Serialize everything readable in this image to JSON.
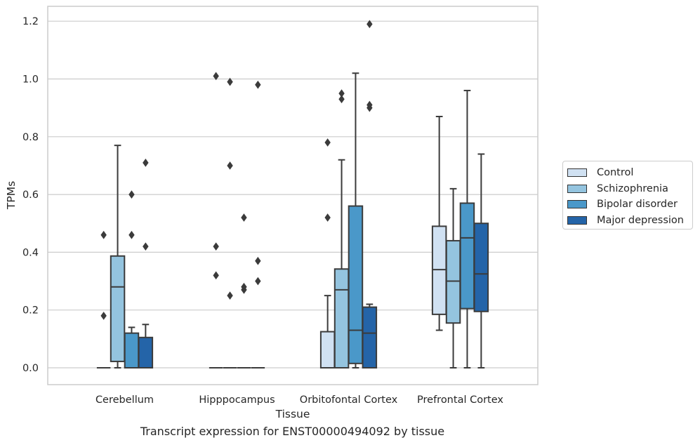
{
  "chart_data": {
    "type": "box",
    "title": "",
    "caption": "Transcript expression for ENST00000494092 by tissue",
    "xlabel": "Tissue",
    "ylabel": "TPMs",
    "ylim": [
      -0.06,
      1.25
    ],
    "yticks": [
      "0.0",
      "0.2",
      "0.4",
      "0.6",
      "0.8",
      "1.0",
      "1.2"
    ],
    "grid": true,
    "legend_position": "right",
    "categories": [
      "Cerebellum",
      "Hipppocampus",
      "Orbitofontal Cortex",
      "Prefrontal Cortex"
    ],
    "series": [
      {
        "name": "Control",
        "color": "#d0e1f2",
        "boxes": [
          {
            "q1": 0,
            "median": 0,
            "q3": 0,
            "whislo": 0,
            "whishi": 0,
            "fliers": [
              0.18,
              0.46
            ]
          },
          {
            "q1": 0,
            "median": 0,
            "q3": 0,
            "whislo": 0,
            "whishi": 0,
            "fliers": [
              0.32,
              0.42,
              1.01
            ]
          },
          {
            "q1": 0,
            "median": 0,
            "q3": 0.125,
            "whislo": 0,
            "whishi": 0.25,
            "fliers": [
              0.52,
              0.78
            ]
          },
          {
            "q1": 0.185,
            "median": 0.34,
            "q3": 0.49,
            "whislo": 0.13,
            "whishi": 0.87,
            "fliers": []
          }
        ]
      },
      {
        "name": "Schizophrenia",
        "color": "#94c4df",
        "boxes": [
          {
            "q1": 0.022,
            "median": 0.28,
            "q3": 0.387,
            "whislo": 0,
            "whishi": 0.77,
            "fliers": []
          },
          {
            "q1": 0,
            "median": 0,
            "q3": 0,
            "whislo": 0,
            "whishi": 0,
            "fliers": [
              0.25,
              0.7,
              0.99
            ]
          },
          {
            "q1": 0,
            "median": 0.27,
            "q3": 0.342,
            "whislo": 0,
            "whishi": 0.72,
            "fliers": [
              0.93,
              0.95
            ]
          },
          {
            "q1": 0.155,
            "median": 0.3,
            "q3": 0.44,
            "whislo": 0,
            "whishi": 0.62,
            "fliers": []
          }
        ]
      },
      {
        "name": "Bipolar disorder",
        "color": "#4a98c9",
        "boxes": [
          {
            "q1": 0,
            "median": 0,
            "q3": 0.12,
            "whislo": 0,
            "whishi": 0.14,
            "fliers": [
              0.46,
              0.6
            ]
          },
          {
            "q1": 0,
            "median": 0,
            "q3": 0,
            "whislo": 0,
            "whishi": 0,
            "fliers": [
              0.27,
              0.28,
              0.52
            ]
          },
          {
            "q1": 0.015,
            "median": 0.13,
            "q3": 0.56,
            "whislo": 0,
            "whishi": 1.02,
            "fliers": []
          },
          {
            "q1": 0.205,
            "median": 0.45,
            "q3": 0.57,
            "whislo": 0,
            "whishi": 0.96,
            "fliers": []
          }
        ]
      },
      {
        "name": "Major depression",
        "color": "#2464a8",
        "boxes": [
          {
            "q1": 0,
            "median": 0,
            "q3": 0.105,
            "whislo": 0,
            "whishi": 0.15,
            "fliers": [
              0.42,
              0.71
            ]
          },
          {
            "q1": 0,
            "median": 0,
            "q3": 0,
            "whislo": 0,
            "whishi": 0,
            "fliers": [
              0.3,
              0.37,
              0.98
            ]
          },
          {
            "q1": 0,
            "median": 0.12,
            "q3": 0.21,
            "whislo": 0,
            "whishi": 0.22,
            "fliers": [
              0.9,
              0.91,
              1.19
            ]
          },
          {
            "q1": 0.195,
            "median": 0.325,
            "q3": 0.5,
            "whislo": 0,
            "whishi": 0.74,
            "fliers": []
          }
        ]
      }
    ]
  }
}
